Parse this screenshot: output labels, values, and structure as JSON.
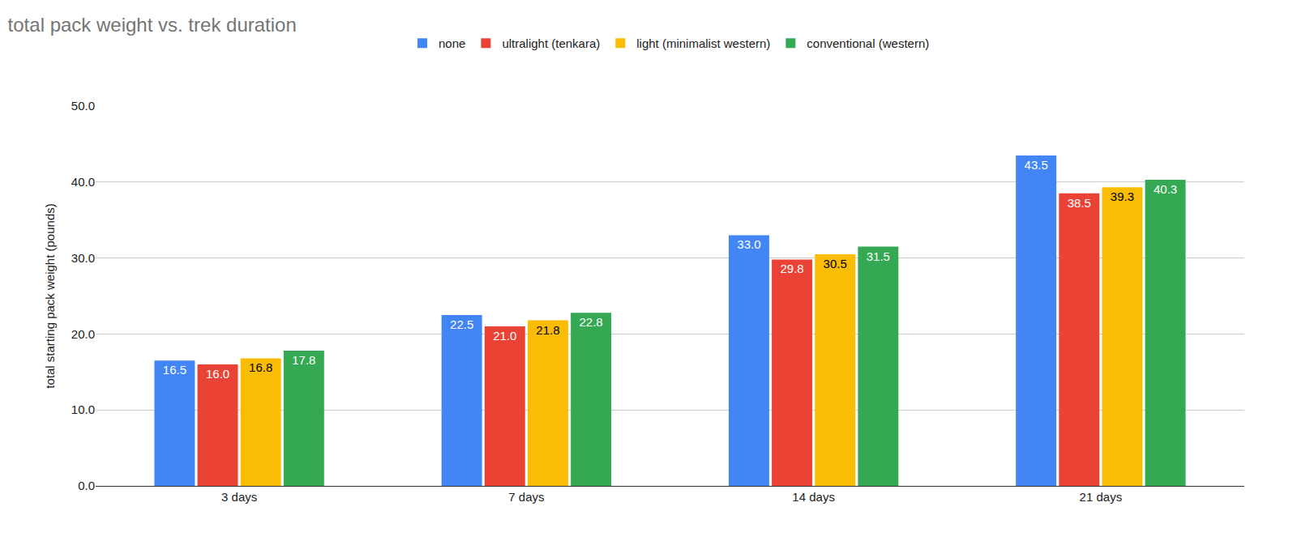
{
  "chart_data": {
    "type": "bar",
    "title": "total pack weight vs. trek duration",
    "y_label": "total starting pack weight (pounds)",
    "categories": [
      "3 days",
      "7 days",
      "14 days",
      "21 days"
    ],
    "series": [
      {
        "name": "none",
        "color": "#4285f4",
        "values": [
          16.5,
          22.5,
          33.0,
          43.5
        ],
        "value_labels": [
          "16.5",
          "22.5",
          "33.0",
          "43.5"
        ]
      },
      {
        "name": "ultralight (tenkara)",
        "color": "#ea4335",
        "values": [
          16.0,
          21.0,
          29.8,
          38.5
        ],
        "value_labels": [
          "16.0",
          "21.0",
          "29.8",
          "38.5"
        ]
      },
      {
        "name": "light (minimalist western)",
        "color": "#fbbc04",
        "values": [
          16.8,
          21.8,
          30.5,
          39.3
        ],
        "value_labels": [
          "16.8",
          "21.8",
          "30.5",
          "39.3"
        ]
      },
      {
        "name": "conventional (western)",
        "color": "#34a853",
        "values": [
          17.8,
          22.8,
          31.5,
          40.3
        ],
        "value_labels": [
          "17.8",
          "22.8",
          "31.5",
          "40.3"
        ]
      }
    ],
    "ylim": [
      0,
      50
    ],
    "yticks": [
      {
        "value": 0,
        "label": "0.0"
      },
      {
        "value": 10,
        "label": "10.0"
      },
      {
        "value": 20,
        "label": "20.0"
      },
      {
        "value": 30,
        "label": "30.0"
      },
      {
        "value": 40,
        "label": "40.0"
      },
      {
        "value": 50,
        "label": "50.0"
      }
    ],
    "grid": true,
    "legend": "top",
    "data_labels": true
  }
}
